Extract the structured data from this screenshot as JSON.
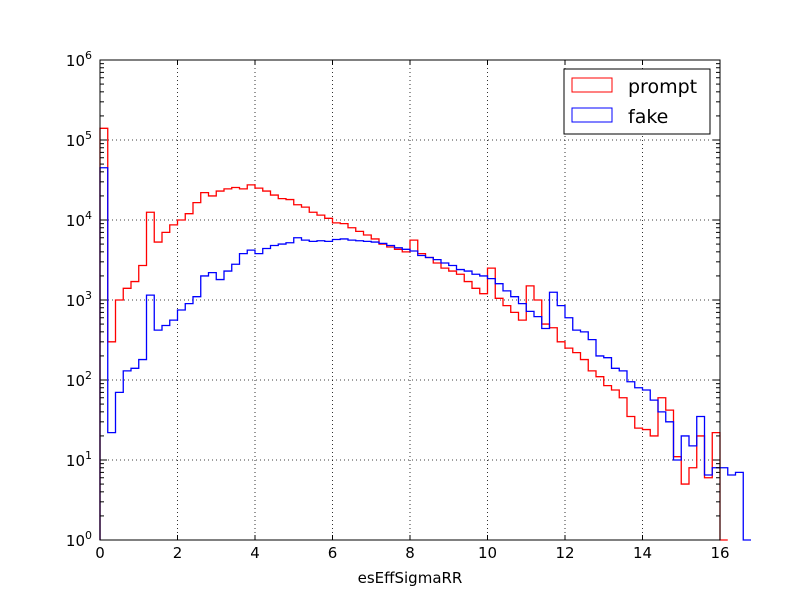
{
  "chart_data": {
    "type": "histogram",
    "title": "",
    "xlabel": "esEffSigmaRR",
    "ylabel": "",
    "xlim": [
      0,
      16
    ],
    "ylim": [
      1,
      1000000
    ],
    "yscale": "log",
    "grid": true,
    "legend_position": "top-right",
    "x_ticks": [
      "0",
      "2",
      "4",
      "6",
      "8",
      "10",
      "12",
      "14",
      "16"
    ],
    "y_ticks": [
      {
        "base": "10",
        "exp": "0"
      },
      {
        "base": "10",
        "exp": "1"
      },
      {
        "base": "10",
        "exp": "2"
      },
      {
        "base": "10",
        "exp": "3"
      },
      {
        "base": "10",
        "exp": "4"
      },
      {
        "base": "10",
        "exp": "5"
      },
      {
        "base": "10",
        "exp": "6"
      }
    ],
    "bin_width": 0.2,
    "series": [
      {
        "name": "prompt",
        "color": "#ff0000",
        "values": [
          140000,
          300,
          1000,
          1400,
          1700,
          2700,
          12500,
          5300,
          7000,
          8700,
          10000,
          12000,
          16500,
          22000,
          20000,
          23000,
          24500,
          25500,
          24500,
          27500,
          25000,
          23000,
          20500,
          18500,
          18000,
          15500,
          14500,
          12500,
          11500,
          10500,
          9200,
          9000,
          8000,
          7200,
          6500,
          5800,
          5000,
          4600,
          4300,
          4000,
          5600,
          3800,
          3400,
          2900,
          2500,
          2300,
          2100,
          1700,
          1400,
          1200,
          2500,
          1050,
          850,
          700,
          560,
          1500,
          1000,
          500,
          450,
          300,
          250,
          220,
          180,
          130,
          110,
          85,
          75,
          60,
          35,
          25,
          24,
          20,
          60,
          42,
          11,
          5,
          8,
          20,
          6,
          22,
          1
        ]
      },
      {
        "name": "fake",
        "color": "#0000ff",
        "values": [
          45000,
          22,
          70,
          130,
          140,
          180,
          1150,
          420,
          480,
          560,
          750,
          900,
          1100,
          2000,
          2200,
          1800,
          2300,
          2800,
          3800,
          4200,
          3800,
          4400,
          4800,
          5000,
          5200,
          6000,
          5600,
          5400,
          5500,
          5400,
          5700,
          5800,
          5600,
          5500,
          5400,
          5300,
          5100,
          4800,
          4500,
          4300,
          4100,
          3600,
          3400,
          3200,
          2900,
          2700,
          2400,
          2300,
          2100,
          2000,
          1850,
          1600,
          1300,
          1100,
          900,
          720,
          620,
          440,
          1250,
          850,
          600,
          420,
          400,
          320,
          200,
          190,
          140,
          130,
          95,
          80,
          75,
          56,
          40,
          30,
          10,
          20,
          15,
          35,
          6.5,
          8,
          8,
          6.5,
          7,
          1
        ]
      }
    ]
  }
}
